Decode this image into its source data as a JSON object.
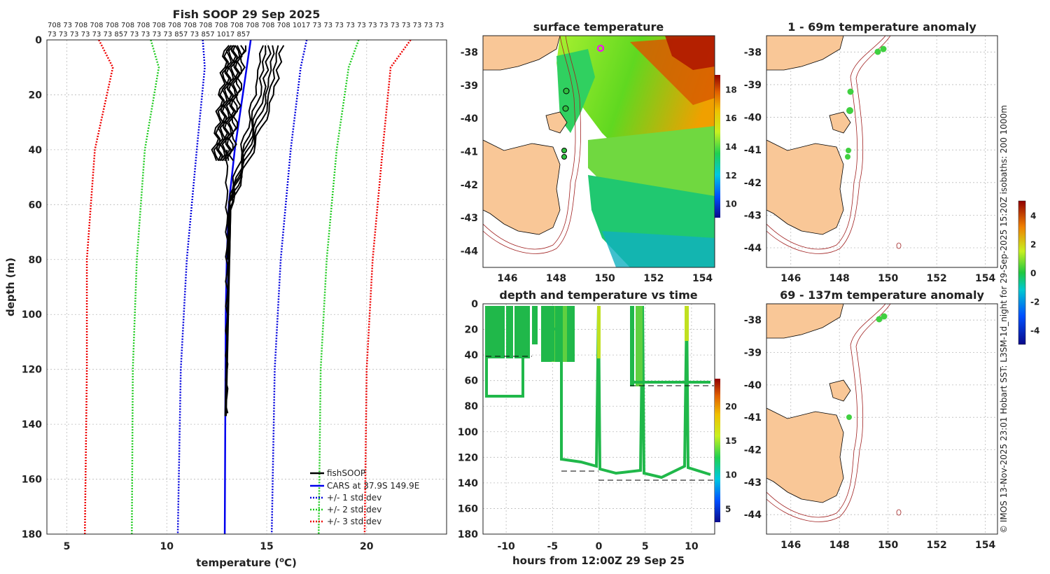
{
  "figure": {
    "credit": "© IMOS 13-Nov-2025 23:01 Hobart SST: L3SM-1d_night for 29-Sep-2025 15:20Z isobaths: 200  1000m"
  },
  "chart_data": [
    {
      "id": "profile",
      "type": "line",
      "title": "Fish SOOP 29 Sep 2025",
      "xlabel": "temperature (°C)",
      "xlabel_main": "temperature (",
      "xlabel_sup": "o",
      "xlabel_end": "C)",
      "ylabel": "depth (m)",
      "xlim": [
        4,
        24
      ],
      "ylim": [
        180,
        0
      ],
      "xticks": [
        5,
        10,
        15,
        20
      ],
      "yticks": [
        0,
        20,
        40,
        60,
        80,
        100,
        120,
        140,
        160,
        180
      ],
      "top_labels": [
        "708 73  708 708 708 708 708 708 708 708 708 708 708 708 708 708 1017 73 73 73 73 73 73 73 73 73 73 73 73",
        "73 73 73 73 73 73 857 73 73 73 73 857 73 857 1017 857"
      ],
      "legend": [
        "fishSOOP",
        "CARS at 37.9S 149.9E",
        "+/- 1 std dev",
        "+/- 2 std dev",
        "+/- 3 std dev"
      ],
      "colors": {
        "fish": "#000000",
        "cars": "#0000ee",
        "std1": "#0000dd",
        "std2": "#22cc22",
        "std3": "#ee0000"
      },
      "series": [
        {
          "name": "CARS",
          "depth": [
            0,
            20,
            40,
            60,
            80,
            100,
            180
          ],
          "temp": [
            14.2,
            13.8,
            13.4,
            13.1,
            13.0,
            12.95,
            12.9
          ]
        },
        {
          "name": "+1 std",
          "depth": [
            0,
            10,
            40,
            80,
            120,
            180
          ],
          "temp": [
            17.0,
            16.7,
            16.2,
            15.7,
            15.4,
            15.25
          ]
        },
        {
          "name": "-1 std",
          "depth": [
            0,
            10,
            40,
            80,
            120,
            180
          ],
          "temp": [
            11.8,
            11.9,
            11.5,
            11.0,
            10.7,
            10.55
          ]
        },
        {
          "name": "+2 std",
          "depth": [
            0,
            10,
            40,
            80,
            120,
            180
          ],
          "temp": [
            19.6,
            19.1,
            18.5,
            18.0,
            17.7,
            17.6
          ]
        },
        {
          "name": "-2 std",
          "depth": [
            0,
            10,
            40,
            80,
            120,
            180
          ],
          "temp": [
            9.2,
            9.6,
            8.9,
            8.5,
            8.3,
            8.25
          ]
        },
        {
          "name": "+3 std",
          "depth": [
            0,
            10,
            40,
            80,
            120,
            180
          ],
          "temp": [
            22.2,
            21.2,
            20.8,
            20.3,
            20.0,
            19.9
          ]
        },
        {
          "name": "-3 std",
          "depth": [
            0,
            10,
            40,
            80,
            120,
            180
          ],
          "temp": [
            6.6,
            7.3,
            6.4,
            6.0,
            6.0,
            5.9
          ]
        }
      ]
    },
    {
      "id": "sst-map",
      "type": "heatmap",
      "title": "surface temperature",
      "xlim": [
        145,
        154.5
      ],
      "ylim": [
        -44.5,
        -37.5
      ],
      "xticks": [
        146,
        148,
        150,
        152,
        154
      ],
      "yticks": [
        -38,
        -39,
        -40,
        -41,
        -42,
        -43,
        -44
      ],
      "colorbar": {
        "ticks": [
          10,
          12,
          14,
          16,
          18
        ],
        "range": [
          9,
          19
        ]
      }
    },
    {
      "id": "depth-time",
      "type": "scatter",
      "title": "depth and temperature vs time",
      "xlabel": "hours from 12:00Z 29 Sep 25",
      "xlim": [
        -12.5,
        12.5
      ],
      "ylim": [
        180,
        0
      ],
      "xticks": [
        -10,
        -5,
        0,
        5,
        10
      ],
      "yticks": [
        0,
        20,
        40,
        60,
        80,
        100,
        120,
        140,
        160,
        180
      ],
      "colorbar": {
        "ticks": [
          5,
          10,
          15,
          20
        ],
        "range": [
          3,
          24
        ]
      }
    },
    {
      "id": "anom-1",
      "type": "scatter",
      "title": "1 - 69m temperature anomaly",
      "xlim": [
        145,
        154.5
      ],
      "ylim": [
        -44.6,
        -37.5
      ],
      "xticks": [
        146,
        148,
        150,
        152,
        154
      ],
      "yticks": [
        -38,
        -39,
        -40,
        -41,
        -42,
        -43,
        -44
      ]
    },
    {
      "id": "anom-2",
      "type": "scatter",
      "title": "69 - 137m temperature anomaly",
      "xlim": [
        145,
        154.5
      ],
      "ylim": [
        -44.6,
        -37.5
      ],
      "xticks": [
        146,
        148,
        150,
        152,
        154
      ],
      "yticks": [
        -38,
        -39,
        -40,
        -41,
        -42,
        -43,
        -44
      ]
    },
    {
      "id": "anom-colorbar",
      "type": "heatmap",
      "ticks": [
        4,
        2,
        0,
        -2,
        -4
      ],
      "range": [
        -5,
        5
      ]
    }
  ]
}
